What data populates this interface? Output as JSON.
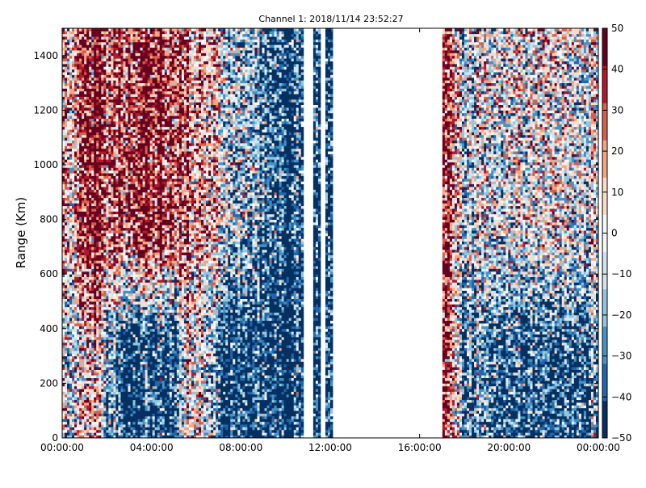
{
  "chart_data": {
    "type": "heatmap",
    "title": "Channel 1: 2018/11/14 23:52:27",
    "ylabel": "Range (Km)",
    "xlabel": "",
    "x_ticks": [
      "00:00:00",
      "04:00:00",
      "08:00:00",
      "12:00:00",
      "16:00:00",
      "20:00:00",
      "00:00:00"
    ],
    "x_range_hours": [
      0,
      24
    ],
    "y_ticks": [
      "0",
      "200",
      "400",
      "600",
      "800",
      "1000",
      "1200",
      "1400"
    ],
    "ylim": [
      0,
      1500
    ],
    "colorbar": {
      "ticks": [
        "50",
        "40",
        "30",
        "20",
        "10",
        "0",
        "−10",
        "−20",
        "−30",
        "−40",
        "−50"
      ],
      "range": [
        -50,
        50
      ],
      "colormap": "RdBu_r",
      "colors_low_to_high": [
        "#053061",
        "#2166ac",
        "#4393c3",
        "#92c5de",
        "#d1e5f0",
        "#f7f7f7",
        "#fddbc7",
        "#f4a582",
        "#d6604d",
        "#b2182b",
        "#67001f"
      ]
    },
    "data_gaps_hours": [
      [
        10.85,
        11.2
      ],
      [
        11.55,
        11.8
      ],
      [
        12.1,
        17.0
      ]
    ],
    "approx_value_profile_by_hour": [
      {
        "hour": 0.5,
        "upper": 15,
        "lower": -5
      },
      {
        "hour": 1.5,
        "upper": 40,
        "lower": 10
      },
      {
        "hour": 3.0,
        "upper": 40,
        "lower": -45
      },
      {
        "hour": 5.0,
        "upper": 35,
        "lower": -40
      },
      {
        "hour": 5.8,
        "upper": 25,
        "lower": 20
      },
      {
        "hour": 7.0,
        "upper": 0,
        "lower": -40
      },
      {
        "hour": 9.0,
        "upper": -30,
        "lower": -45
      },
      {
        "hour": 10.5,
        "upper": -45,
        "lower": -50
      },
      {
        "hour": 11.6,
        "upper": -50,
        "lower": -50
      },
      {
        "hour": 17.1,
        "upper": 50,
        "lower": 50
      },
      {
        "hour": 18.0,
        "upper": -10,
        "lower": -30
      },
      {
        "hour": 20.0,
        "upper": 0,
        "lower": -35
      },
      {
        "hour": 22.0,
        "upper": 5,
        "lower": -40
      },
      {
        "hour": 23.5,
        "upper": -5,
        "lower": -35
      }
    ]
  }
}
